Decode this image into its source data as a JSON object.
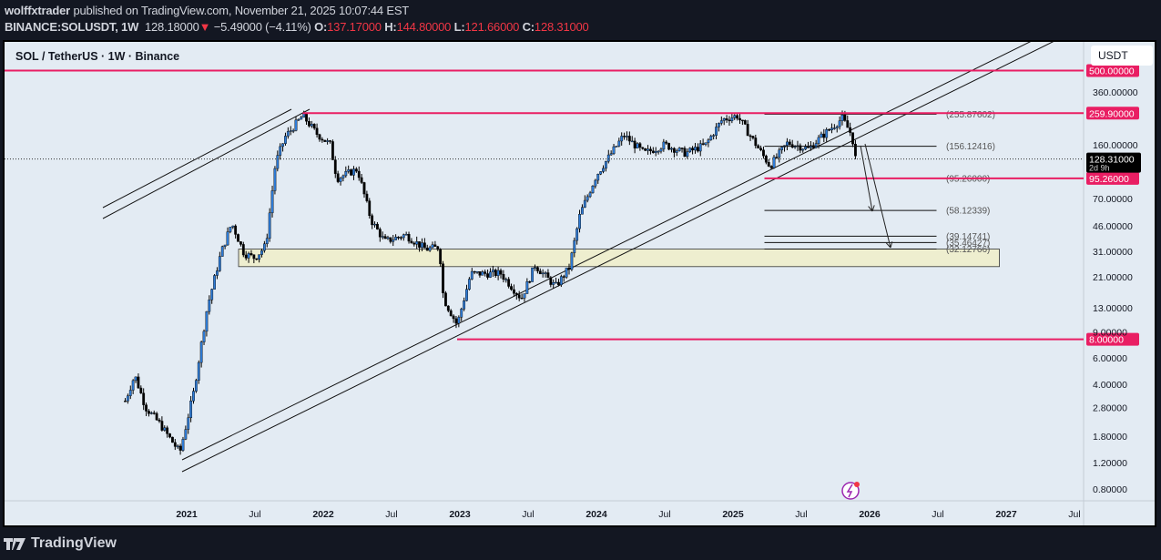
{
  "header": {
    "author": "wolffxtrader",
    "published_text": "published on TradingView.com, November 21, 2025 10:07:44 EST",
    "symbol": "BINANCE:SOLUSDT, 1W",
    "last": "128.18000",
    "change": "−5.49000 (−4.11%)",
    "o_label": "O:",
    "o": "137.17000",
    "h_label": "H:",
    "h": "144.80000",
    "l_label": "L:",
    "l": "121.66000",
    "c_label": "C:",
    "c": "128.31000"
  },
  "chart_title": "SOL / TetherUS · 1W · Binance",
  "currency_button": "USDT",
  "colors": {
    "up": "#2e7bd6",
    "down": "#000000",
    "level": "#e91e63",
    "zone": "#eeeecf",
    "background": "#e3ebf3"
  },
  "chart_data": {
    "type": "candlestick",
    "scale": "log",
    "y_ticks": [
      "360.00000",
      "160.00000",
      "70.00000",
      "46.00000",
      "31.00000",
      "21.00000",
      "13.00000",
      "9.00000",
      "6.00000",
      "4.00000",
      "2.80000",
      "1.80000",
      "1.20000",
      "0.80000"
    ],
    "y_tick_values": [
      360,
      160,
      70,
      46,
      31,
      21,
      13,
      9,
      6,
      4,
      2.8,
      1.8,
      1.2,
      0.8
    ],
    "x_ticks": [
      "2021",
      "Jul",
      "2022",
      "Jul",
      "2023",
      "Jul",
      "2024",
      "Jul",
      "2025",
      "Jul",
      "2026",
      "Jul",
      "2027",
      "Jul"
    ],
    "x_tick_values": [
      2021,
      2021.5,
      2022,
      2022.5,
      2023,
      2023.5,
      2024,
      2024.5,
      2025,
      2025.5,
      2026,
      2026.5,
      2027,
      2027.5
    ],
    "price_path": [
      [
        2020.55,
        3.1
      ],
      [
        2020.62,
        4.6
      ],
      [
        2020.7,
        2.8
      ],
      [
        2020.8,
        2.2
      ],
      [
        2020.95,
        1.4
      ],
      [
        2021.05,
        3.5
      ],
      [
        2021.15,
        13
      ],
      [
        2021.25,
        30
      ],
      [
        2021.33,
        48
      ],
      [
        2021.42,
        30
      ],
      [
        2021.5,
        28
      ],
      [
        2021.58,
        34
      ],
      [
        2021.65,
        120
      ],
      [
        2021.72,
        180
      ],
      [
        2021.85,
        250
      ],
      [
        2021.95,
        190
      ],
      [
        2022.05,
        160
      ],
      [
        2022.1,
        95
      ],
      [
        2022.25,
        110
      ],
      [
        2022.35,
        50
      ],
      [
        2022.45,
        36
      ],
      [
        2022.6,
        40
      ],
      [
        2022.75,
        32
      ],
      [
        2022.85,
        33
      ],
      [
        2022.88,
        15
      ],
      [
        2022.98,
        10
      ],
      [
        2023.08,
        22
      ],
      [
        2023.3,
        22
      ],
      [
        2023.45,
        15
      ],
      [
        2023.55,
        25
      ],
      [
        2023.7,
        18
      ],
      [
        2023.8,
        24
      ],
      [
        2023.88,
        55
      ],
      [
        2024.0,
        100
      ],
      [
        2024.2,
        185
      ],
      [
        2024.35,
        140
      ],
      [
        2024.5,
        160
      ],
      [
        2024.65,
        140
      ],
      [
        2024.8,
        160
      ],
      [
        2024.92,
        235
      ],
      [
        2025.03,
        250
      ],
      [
        2025.15,
        170
      ],
      [
        2025.27,
        115
      ],
      [
        2025.4,
        165
      ],
      [
        2025.55,
        150
      ],
      [
        2025.7,
        200
      ],
      [
        2025.8,
        240
      ],
      [
        2025.87,
        185
      ],
      [
        2025.9,
        128.31
      ]
    ],
    "levels": [
      {
        "label": "500.00000",
        "value": 500
      },
      {
        "label": "259.90000",
        "value": 259.9
      },
      {
        "label": "95.26000",
        "value": 95.26
      },
      {
        "label": "8.00000",
        "value": 8
      }
    ],
    "current_price": {
      "label": "128.31000",
      "countdown": "2d 9h",
      "value": 128.31
    },
    "fib_levels": [
      {
        "label": "(255.87602)",
        "value": 255.87602
      },
      {
        "label": "(156.12416)",
        "value": 156.12416
      },
      {
        "label": "(95.26000)",
        "value": 95.26
      },
      {
        "label": "(58.12339)",
        "value": 58.12339
      },
      {
        "label": "(39.14741)",
        "value": 39.14741
      },
      {
        "label": "(35.46427)",
        "value": 35.46427
      },
      {
        "label": "(32.12766)",
        "value": 32.12766
      }
    ],
    "zone": {
      "top": 32.1,
      "bottom": 24.5
    }
  },
  "footer": {
    "brand": "TradingView"
  }
}
